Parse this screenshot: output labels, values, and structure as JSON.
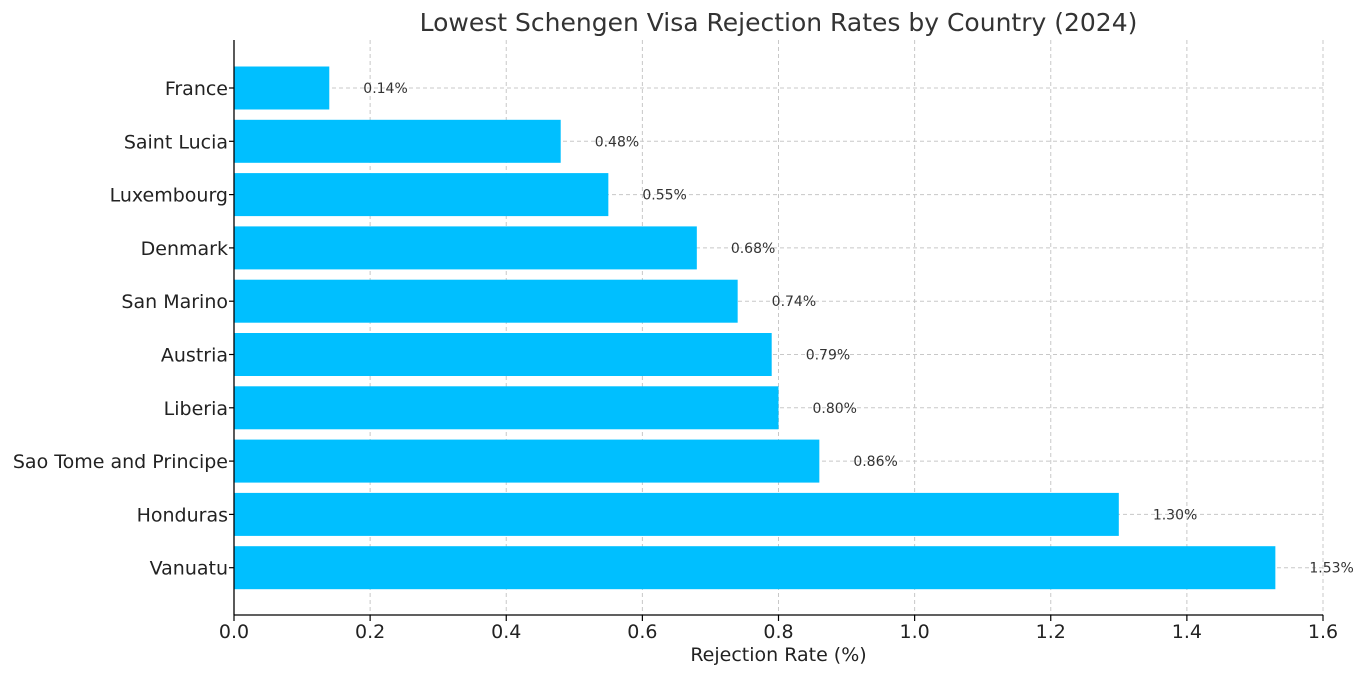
{
  "chart_data": {
    "type": "bar",
    "orientation": "horizontal",
    "title": "Lowest Schengen Visa Rejection Rates by Country (2024)",
    "xlabel": "Rejection Rate (%)",
    "ylabel": "",
    "xlim": [
      0,
      1.6
    ],
    "xticks": [
      0.0,
      0.2,
      0.4,
      0.6,
      0.8,
      1.0,
      1.2,
      1.4,
      1.6
    ],
    "xtick_labels": [
      "0.0",
      "0.2",
      "0.4",
      "0.6",
      "0.8",
      "1.0",
      "1.2",
      "1.4",
      "1.6"
    ],
    "grid": true,
    "bar_color": "#00BFFF",
    "categories": [
      "France",
      "Saint Lucia",
      "Luxembourg",
      "Denmark",
      "San Marino",
      "Austria",
      "Liberia",
      "Sao Tome and Principe",
      "Honduras",
      "Vanuatu"
    ],
    "values": [
      0.14,
      0.48,
      0.55,
      0.68,
      0.74,
      0.79,
      0.8,
      0.86,
      1.3,
      1.53
    ],
    "data_labels": [
      "0.14%",
      "0.48%",
      "0.55%",
      "0.68%",
      "0.74%",
      "0.79%",
      "0.80%",
      "0.86%",
      "1.30%",
      "1.53%"
    ]
  }
}
